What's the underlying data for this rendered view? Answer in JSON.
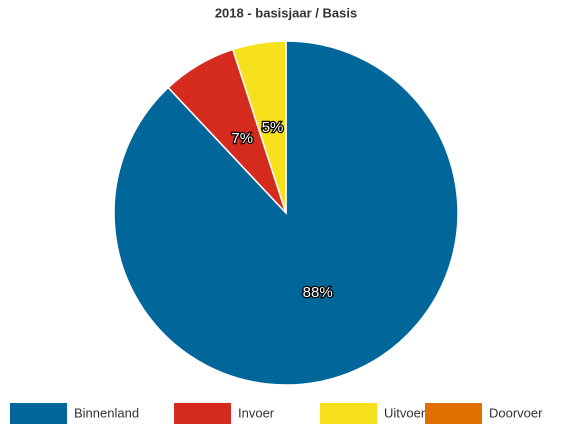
{
  "chart_data": {
    "type": "pie",
    "title": "2018 - basisjaar / Basis",
    "categories": [
      "Binnenland",
      "Invoer",
      "Uitvoer",
      "Doorvoer"
    ],
    "values": [
      88,
      7,
      5,
      0
    ],
    "value_labels": [
      "88%",
      "7%",
      "5%",
      null
    ],
    "colors": [
      "#01669a",
      "#d52b1e",
      "#f7e11c",
      "#e17000"
    ],
    "legend": "bottom"
  }
}
